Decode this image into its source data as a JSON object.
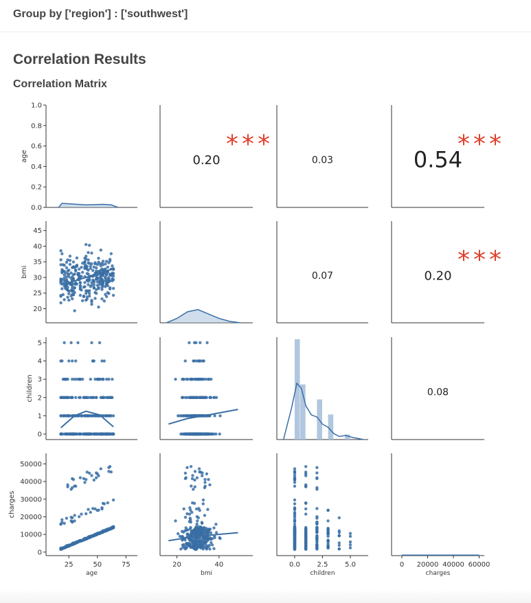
{
  "header": {
    "group_label": "Group by ['region'] : ['southwest']",
    "section_title": "Correlation Results",
    "subsection_title": "Correlation Matrix"
  },
  "colors": {
    "scatter": "#3a6ea5",
    "hist": "#a8c1dd",
    "significance": "#e0412e",
    "axis": "#333333"
  },
  "chart_data": {
    "type": "pairplot",
    "title": "Correlation Matrix",
    "variables": [
      "age",
      "bmi",
      "children",
      "charges"
    ],
    "axis_labels": {
      "x": [
        "age",
        "bmi",
        "children",
        "charges"
      ],
      "y": [
        "age",
        "bmi",
        "children",
        "charges"
      ]
    },
    "ticks": {
      "x": {
        "age": [
          25,
          50,
          75
        ],
        "bmi": [
          20,
          40
        ],
        "children": [
          0.0,
          2.5,
          5.0
        ],
        "charges": [
          0,
          20000,
          40000,
          60000
        ]
      },
      "x_labels": {
        "age": [
          "25",
          "50",
          "75"
        ],
        "bmi": [
          "20",
          "40"
        ],
        "children": [
          "0.0",
          "2.5",
          "5.0"
        ],
        "charges": [
          "0",
          "20000",
          "40000",
          "60000"
        ]
      },
      "y": {
        "age": [
          0.0,
          0.2,
          0.4,
          0.6,
          0.8,
          1.0
        ],
        "bmi": [
          20,
          25,
          30,
          35,
          40,
          45
        ],
        "children": [
          0,
          1,
          2,
          3,
          4,
          5
        ],
        "charges": [
          0,
          10000,
          20000,
          30000,
          40000,
          50000
        ]
      },
      "y_labels": {
        "age": [
          "0.0",
          "0.2",
          "0.4",
          "0.6",
          "0.8",
          "1.0"
        ],
        "bmi": [
          "20",
          "25",
          "30",
          "35",
          "40",
          "45"
        ],
        "children": [
          "0",
          "1",
          "2",
          "3",
          "4",
          "5"
        ],
        "charges": [
          "0",
          "10000",
          "20000",
          "30000",
          "40000",
          "50000"
        ]
      }
    },
    "ranges": {
      "x": {
        "age": [
          5,
          85
        ],
        "bmi": [
          12,
          56
        ],
        "children": [
          -1.6,
          6.6
        ],
        "charges": [
          -8000,
          64000
        ]
      },
      "y": {
        "age": [
          0.0,
          1.0
        ],
        "bmi": [
          15.5,
          48
        ],
        "children": [
          -0.3,
          5.3
        ],
        "charges": [
          -2000,
          56000
        ]
      }
    },
    "correlations": [
      {
        "row": "age",
        "col": "bmi",
        "value": "0.20",
        "stars": "***"
      },
      {
        "row": "age",
        "col": "children",
        "value": "0.03",
        "stars": ""
      },
      {
        "row": "age",
        "col": "charges",
        "value": "0.54",
        "stars": "***"
      },
      {
        "row": "bmi",
        "col": "children",
        "value": "0.07",
        "stars": ""
      },
      {
        "row": "bmi",
        "col": "charges",
        "value": "0.20",
        "stars": "***"
      },
      {
        "row": "children",
        "col": "charges",
        "value": "0.08",
        "stars": ""
      }
    ],
    "children_histogram": {
      "bin_starts": [
        0,
        0.5,
        1,
        1.5,
        2,
        2.5,
        3,
        3.5,
        4,
        4.5
      ],
      "bin_width": 0.5,
      "relative_heights": [
        1.0,
        0.55,
        0,
        0,
        0.4,
        0,
        0.25,
        0,
        0,
        0.05
      ]
    },
    "children_kde": [
      [
        -1.0,
        0.0
      ],
      [
        -0.3,
        0.3
      ],
      [
        0.2,
        0.55
      ],
      [
        0.6,
        0.5
      ],
      [
        1.0,
        0.33
      ],
      [
        1.5,
        0.24
      ],
      [
        2.0,
        0.22
      ],
      [
        2.5,
        0.15
      ],
      [
        3.0,
        0.12
      ],
      [
        3.5,
        0.06
      ],
      [
        4.0,
        0.03
      ],
      [
        4.6,
        0.04
      ],
      [
        5.2,
        0.02
      ],
      [
        6.2,
        0.0
      ]
    ],
    "age_kde": [
      [
        16,
        0.0
      ],
      [
        19,
        0.04
      ],
      [
        25,
        0.035
      ],
      [
        40,
        0.025
      ],
      [
        55,
        0.03
      ],
      [
        62,
        0.025
      ],
      [
        68,
        0.0
      ]
    ],
    "bmi_kde": [
      [
        15,
        0.0
      ],
      [
        20,
        0.03
      ],
      [
        25,
        0.075
      ],
      [
        30,
        0.09
      ],
      [
        35,
        0.06
      ],
      [
        40,
        0.03
      ],
      [
        45,
        0.01
      ],
      [
        50,
        0.0
      ]
    ],
    "charges_kde": [
      [
        0,
        0.005
      ],
      [
        60000,
        0.005
      ]
    ],
    "trend_lines": {
      "bmi_vs_age": [
        [
          18,
          27.6
        ],
        [
          40,
          30.0
        ],
        [
          64,
          32.8
        ]
      ],
      "children_vs_age": [
        [
          18,
          0.35
        ],
        [
          30,
          1.0
        ],
        [
          40,
          1.25
        ],
        [
          52,
          1.05
        ],
        [
          64,
          0.4
        ]
      ],
      "children_vs_bmi": [
        [
          16,
          0.55
        ],
        [
          25,
          0.85
        ],
        [
          35,
          1.05
        ],
        [
          49,
          1.35
        ]
      ],
      "charges_vs_age": [
        [
          18,
          2200
        ],
        [
          40,
          7000
        ],
        [
          64,
          14000
        ]
      ],
      "charges_vs_bmi": [
        [
          16,
          6500
        ],
        [
          30,
          9000
        ],
        [
          49,
          11000
        ]
      ]
    }
  }
}
